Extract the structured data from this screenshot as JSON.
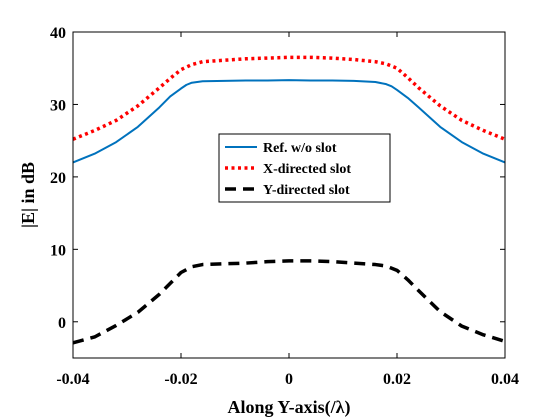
{
  "chart_data": {
    "type": "line",
    "xlabel": "Along Y-axis(/λ)",
    "ylabel": "|E| in dB",
    "xlim": [
      -0.04,
      0.04
    ],
    "ylim": [
      -5,
      40
    ],
    "xticks": [
      -0.04,
      -0.02,
      0,
      0.02,
      0.04
    ],
    "xtick_labels": [
      "-0.04",
      "-0.02",
      "0",
      "0.02",
      "0.04"
    ],
    "yticks": [
      0,
      10,
      20,
      30,
      40
    ],
    "ytick_labels": [
      "0",
      "10",
      "20",
      "30",
      "40"
    ],
    "grid": false,
    "legend_position": "center",
    "series": [
      {
        "name": "Ref. w/o slot",
        "color": "#0072BD",
        "style": "solid",
        "x": [
          -0.04,
          -0.036,
          -0.032,
          -0.028,
          -0.024,
          -0.022,
          -0.02,
          -0.019,
          -0.018,
          -0.016,
          -0.012,
          -0.008,
          -0.004,
          0,
          0.004,
          0.008,
          0.012,
          0.016,
          0.018,
          0.019,
          0.02,
          0.022,
          0.024,
          0.028,
          0.032,
          0.036,
          0.04
        ],
        "y": [
          22.0,
          23.2,
          24.8,
          26.9,
          29.6,
          31.1,
          32.2,
          32.7,
          33.0,
          33.2,
          33.25,
          33.3,
          33.3,
          33.35,
          33.3,
          33.3,
          33.25,
          33.1,
          32.8,
          32.5,
          32.0,
          30.9,
          29.6,
          26.9,
          24.8,
          23.2,
          22.0
        ]
      },
      {
        "name": "X-directed slot",
        "color": "#FF0000",
        "style": "dotted",
        "x": [
          -0.04,
          -0.036,
          -0.032,
          -0.028,
          -0.024,
          -0.022,
          -0.02,
          -0.018,
          -0.016,
          -0.012,
          -0.008,
          -0.004,
          0,
          0.004,
          0.008,
          0.012,
          0.016,
          0.018,
          0.02,
          0.022,
          0.024,
          0.028,
          0.032,
          0.036,
          0.04
        ],
        "y": [
          25.2,
          26.4,
          27.8,
          29.8,
          32.3,
          33.6,
          34.8,
          35.5,
          35.9,
          36.1,
          36.3,
          36.4,
          36.5,
          36.5,
          36.4,
          36.2,
          35.9,
          35.6,
          35.0,
          33.7,
          32.3,
          29.8,
          27.8,
          26.4,
          25.2
        ]
      },
      {
        "name": "Y-directed slot",
        "color": "#000000",
        "style": "dashed",
        "x": [
          -0.04,
          -0.036,
          -0.032,
          -0.028,
          -0.024,
          -0.022,
          -0.02,
          -0.018,
          -0.016,
          -0.012,
          -0.008,
          -0.004,
          0,
          0.004,
          0.008,
          0.012,
          0.016,
          0.018,
          0.02,
          0.022,
          0.024,
          0.028,
          0.032,
          0.036,
          0.04
        ],
        "y": [
          -2.9,
          -2.1,
          -0.5,
          1.3,
          3.8,
          5.3,
          6.8,
          7.6,
          7.9,
          8.0,
          8.1,
          8.3,
          8.4,
          8.4,
          8.3,
          8.1,
          7.9,
          7.7,
          7.1,
          5.8,
          4.3,
          1.4,
          -0.6,
          -1.8,
          -2.7
        ]
      }
    ]
  }
}
